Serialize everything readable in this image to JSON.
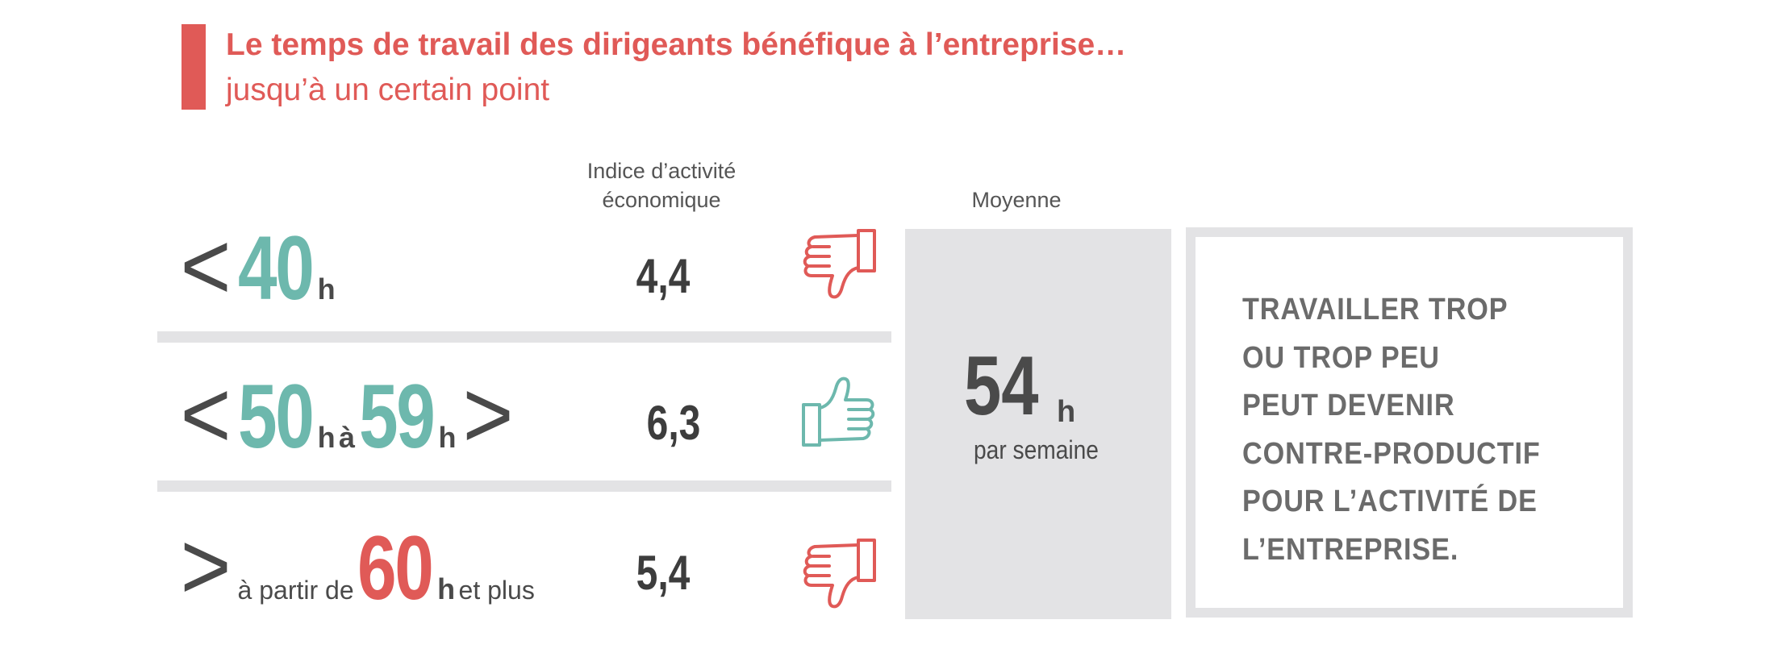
{
  "title": {
    "main": "Le temps de travail des dirigeants bénéfique à l’entreprise…",
    "sub": "jusqu’à un certain point"
  },
  "headers": {
    "indice_line1": "Indice d’activité",
    "indice_line2": "économique",
    "moyenne": "Moyenne"
  },
  "rows": [
    {
      "open": "<",
      "number": "40",
      "unit": "h",
      "value": "4,4",
      "thumb": "thumbs-down-icon"
    },
    {
      "open": "<",
      "number_a": "50",
      "unit_a": "h",
      "connector": "à",
      "number_b": "59",
      "unit_b": "h",
      "close": ">",
      "value": "6,3",
      "thumb": "thumbs-up-icon"
    },
    {
      "open": ">",
      "prefix": "à partir de",
      "number": "60",
      "unit": "h",
      "suffix": "et plus",
      "value": "5,4",
      "thumb": "thumbs-down-icon"
    }
  ],
  "average": {
    "number": "54",
    "unit": "h",
    "caption": "par semaine"
  },
  "message": {
    "lines": [
      "TRAVAILLER TROP",
      "OU TROP PEU",
      "PEUT DEVENIR",
      "CONTRE-PRODUCTIF",
      "POUR L’ACTIVITÉ DE",
      "L’ENTREPRISE."
    ]
  },
  "colors": {
    "accent_red": "#e05a57",
    "accent_teal": "#6db8ad",
    "text_dark": "#4a4a4a",
    "panel_gray": "#e3e3e5"
  }
}
